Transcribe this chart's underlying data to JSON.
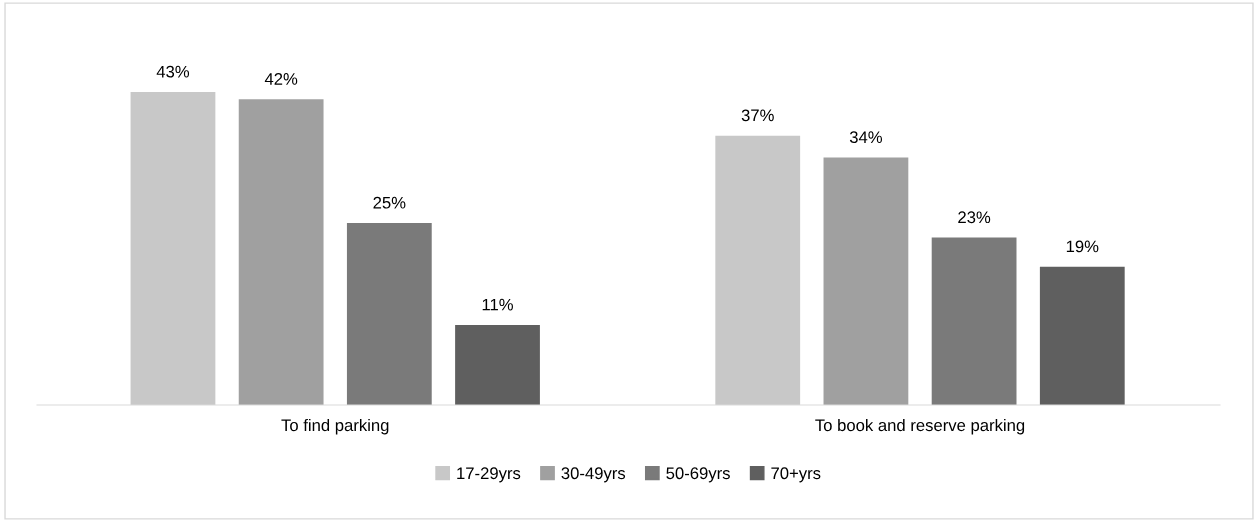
{
  "chart_data": {
    "type": "bar",
    "categories": [
      "To find parking",
      "To book and reserve parking"
    ],
    "series": [
      {
        "name": "17-29yrs",
        "color": "#c8c8c8",
        "values": [
          43,
          37
        ],
        "value_labels": [
          "43%",
          "37%"
        ]
      },
      {
        "name": "30-49yrs",
        "color": "#a0a0a0",
        "values": [
          42,
          34
        ],
        "value_labels": [
          "42%",
          "34%"
        ]
      },
      {
        "name": "50-69yrs",
        "color": "#7a7a7a",
        "values": [
          25,
          23
        ],
        "value_labels": [
          "25%",
          "23%"
        ]
      },
      {
        "name": "70+yrs",
        "color": "#5f5f5f",
        "values": [
          11,
          19
        ],
        "value_labels": [
          "11%",
          "19%"
        ]
      }
    ],
    "legend": "bottom"
  }
}
